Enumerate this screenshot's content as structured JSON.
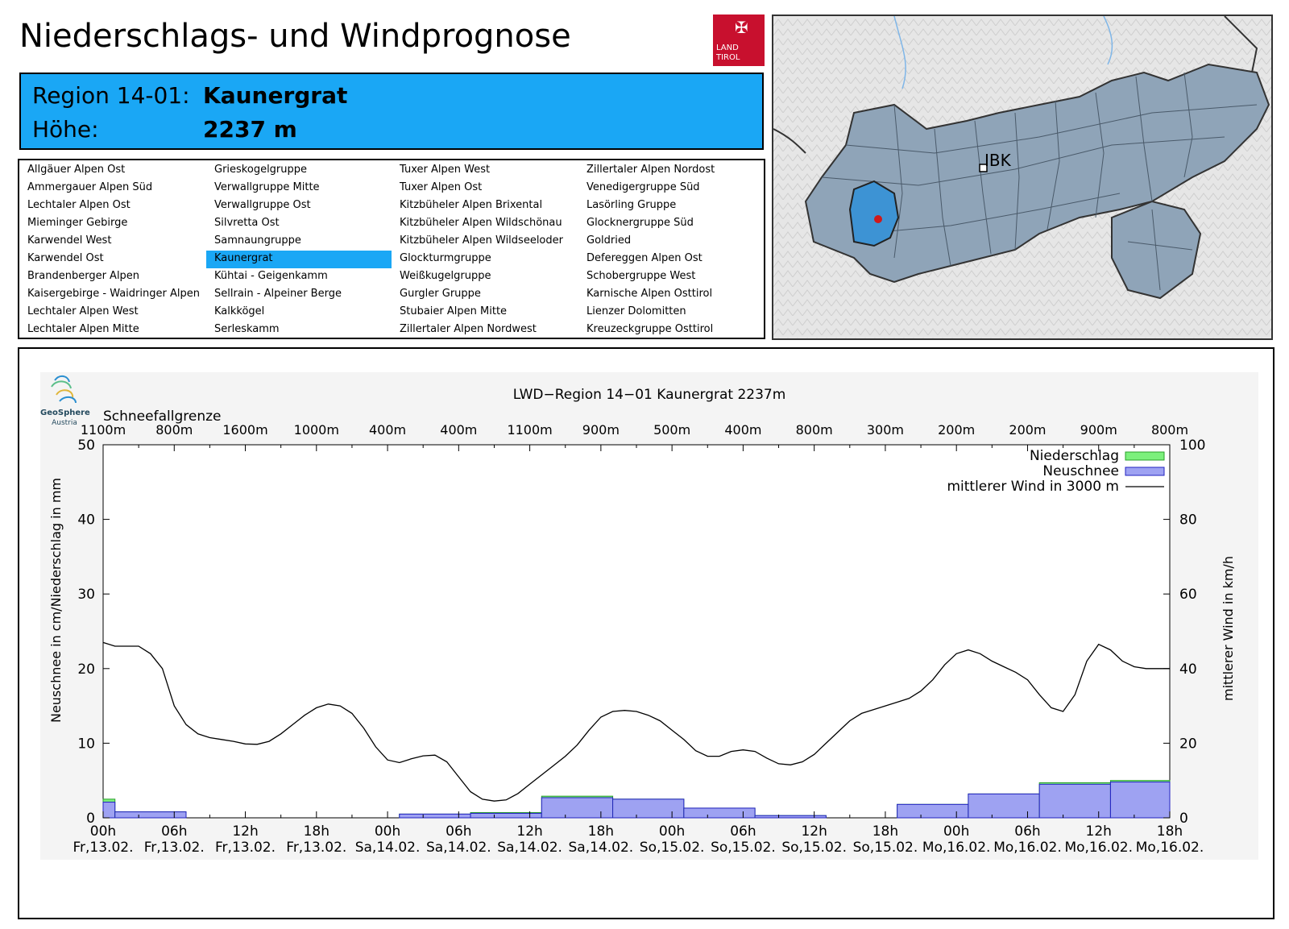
{
  "header": {
    "title": "Niederschlags- und Windprognose",
    "logo_text_line1": "LAND",
    "logo_text_line2": "TIROL"
  },
  "region": {
    "label_region": "Region 14-01:",
    "name": "Kaunergrat",
    "label_height": "Höhe:",
    "height": "2237 m"
  },
  "region_list": {
    "columns": [
      [
        "Allgäuer Alpen Ost",
        "Ammergauer Alpen Süd",
        "Lechtaler Alpen Ost",
        "Mieminger Gebirge",
        "Karwendel West",
        "Karwendel Ost",
        "Brandenberger Alpen",
        "Kaisergebirge - Waidringer Alpen",
        "Lechtaler Alpen West",
        "Lechtaler Alpen Mitte"
      ],
      [
        "Grieskogelgruppe",
        "Verwallgruppe Mitte",
        "Verwallgruppe Ost",
        "Silvretta Ost",
        "Samnaungruppe",
        "Kaunergrat",
        "Kühtai - Geigenkamm",
        "Sellrain - Alpeiner Berge",
        "Kalkkögel",
        "Serleskamm"
      ],
      [
        "Tuxer Alpen West",
        "Tuxer Alpen Ost",
        "Kitzbüheler Alpen Brixental",
        "Kitzbüheler Alpen Wildschönau",
        "Kitzbüheler Alpen Wildseeloder",
        "Glockturmgruppe",
        "Weißkugelgruppe",
        "Gurgler Gruppe",
        "Stubaier Alpen Mitte",
        "Zillertaler Alpen Nordwest"
      ],
      [
        "Zillertaler Alpen Nordost",
        "Venedigergruppe Süd",
        "Lasörling Gruppe",
        "Glocknergruppe Süd",
        "Goldried",
        "Defereggen Alpen Ost",
        "Schobergruppe West",
        "Karnische Alpen Osttirol",
        "Lienzer Dolomitten",
        "Kreuzeckgruppe Osttirol"
      ]
    ],
    "selected": "Kaunergrat"
  },
  "map": {
    "city_label": "IBK",
    "colors": {
      "regions": "#8fa4b8",
      "selected": "#3d93d4",
      "marker": "#d0191b",
      "terrain": "#e4e4e4"
    }
  },
  "geosphere_logo": {
    "line1": "GeoSphere",
    "line2": "Austria"
  },
  "chart_data": {
    "type": "bar",
    "title": "LWD−Region 14−01 Kaunergrat 2237m",
    "ylabel": "Neuschnee in cm/Niederschlag in mm",
    "y2label": "mittlerer Wind in km/h",
    "ylim": [
      0,
      50
    ],
    "y2lim": [
      0,
      100
    ],
    "yticks": [
      "0",
      "10",
      "20",
      "30",
      "40",
      "50"
    ],
    "y2ticks": [
      "0",
      "20",
      "40",
      "60",
      "80",
      "100"
    ],
    "snowline_label": "Schneefallgrenze",
    "snowline": [
      "1100m",
      "800m",
      "1600m",
      "1000m",
      "400m",
      "400m",
      "1100m",
      "900m",
      "500m",
      "400m",
      "800m",
      "300m",
      "200m",
      "200m",
      "900m",
      "800m"
    ],
    "x_time_labels": [
      "00h",
      "06h",
      "12h",
      "18h",
      "00h",
      "06h",
      "12h",
      "18h",
      "00h",
      "06h",
      "12h",
      "18h",
      "00h",
      "06h",
      "12h",
      "18h"
    ],
    "x_date_labels": [
      "Fr,13.02.",
      "Fr,13.02.",
      "Fr,13.02.",
      "Fr,13.02.",
      "Sa,14.02.",
      "Sa,14.02.",
      "Sa,14.02.",
      "Sa,14.02.",
      "So,15.02.",
      "So,15.02.",
      "So,15.02.",
      "So,15.02.",
      "Mo,16.02.",
      "Mo,16.02.",
      "Mo,16.02.",
      "Mo,16.02."
    ],
    "x_range_hours": [
      0,
      90
    ],
    "legend": [
      {
        "name": "Niederschlag",
        "color": "#7cf07c"
      },
      {
        "name": "Neuschnee",
        "color": "#9ea2f2"
      },
      {
        "name": "mittlerer Wind in 3000 m",
        "color": "#000000"
      }
    ],
    "legend_position": "top-right",
    "precip_bars": [
      {
        "start": 0,
        "end": 1,
        "niederschlag": 2.5,
        "neuschnee": 2.1
      },
      {
        "start": 1,
        "end": 7,
        "niederschlag": 0.8,
        "neuschnee": 0.8
      },
      {
        "start": 25,
        "end": 31,
        "niederschlag": 0.5,
        "neuschnee": 0.5
      },
      {
        "start": 31,
        "end": 37,
        "niederschlag": 0.7,
        "neuschnee": 0.6
      },
      {
        "start": 37,
        "end": 43,
        "niederschlag": 2.9,
        "neuschnee": 2.7
      },
      {
        "start": 43,
        "end": 49,
        "niederschlag": 2.5,
        "neuschnee": 2.5
      },
      {
        "start": 49,
        "end": 55,
        "niederschlag": 1.3,
        "neuschnee": 1.3
      },
      {
        "start": 55,
        "end": 61,
        "niederschlag": 0.3,
        "neuschnee": 0.3
      },
      {
        "start": 67,
        "end": 73,
        "niederschlag": 1.8,
        "neuschnee": 1.8
      },
      {
        "start": 73,
        "end": 79,
        "niederschlag": 3.2,
        "neuschnee": 3.2
      },
      {
        "start": 79,
        "end": 85,
        "niederschlag": 4.7,
        "neuschnee": 4.5
      },
      {
        "start": 85,
        "end": 90,
        "niederschlag": 5.0,
        "neuschnee": 4.8
      }
    ],
    "wind": {
      "hours": [
        0,
        1,
        2,
        3,
        4,
        5,
        6,
        7,
        8,
        9,
        10,
        11,
        12,
        13,
        14,
        15,
        16,
        17,
        18,
        19,
        20,
        21,
        22,
        23,
        24,
        25,
        26,
        27,
        28,
        29,
        30,
        31,
        32,
        33,
        34,
        35,
        36,
        37,
        38,
        39,
        40,
        41,
        42,
        43,
        44,
        45,
        46,
        47,
        48,
        49,
        50,
        51,
        52,
        53,
        54,
        55,
        56,
        57,
        58,
        59,
        60,
        61,
        62,
        63,
        64,
        65,
        66,
        67,
        68,
        69,
        70,
        71,
        72,
        73,
        74,
        75,
        76,
        77,
        78,
        79,
        80,
        81,
        82,
        83,
        84,
        85,
        86,
        87,
        88,
        89,
        90
      ],
      "kmh": [
        47,
        46,
        46,
        46,
        44,
        40,
        30,
        25,
        22.5,
        21.5,
        21,
        20.5,
        19.8,
        19.7,
        20.5,
        22.5,
        25,
        27.5,
        29.5,
        30.5,
        30,
        28,
        24,
        19,
        15.5,
        14.8,
        15.8,
        16.6,
        16.8,
        15,
        11,
        7,
        5,
        4.5,
        4.8,
        6.5,
        9,
        11.5,
        14,
        16.5,
        19.5,
        23.5,
        27,
        28.5,
        28.8,
        28.5,
        27.5,
        26,
        23.5,
        21,
        18,
        16.5,
        16.5,
        17.8,
        18.2,
        17.8,
        16,
        14.5,
        14.2,
        15,
        17,
        20,
        23,
        26,
        28,
        29,
        30,
        31,
        32,
        34,
        37,
        41,
        44,
        45,
        44,
        42,
        40.5,
        39,
        37,
        33,
        29.5,
        28.5,
        33,
        42,
        46.5,
        45,
        42,
        40.5,
        40,
        40,
        40
      ]
    }
  }
}
